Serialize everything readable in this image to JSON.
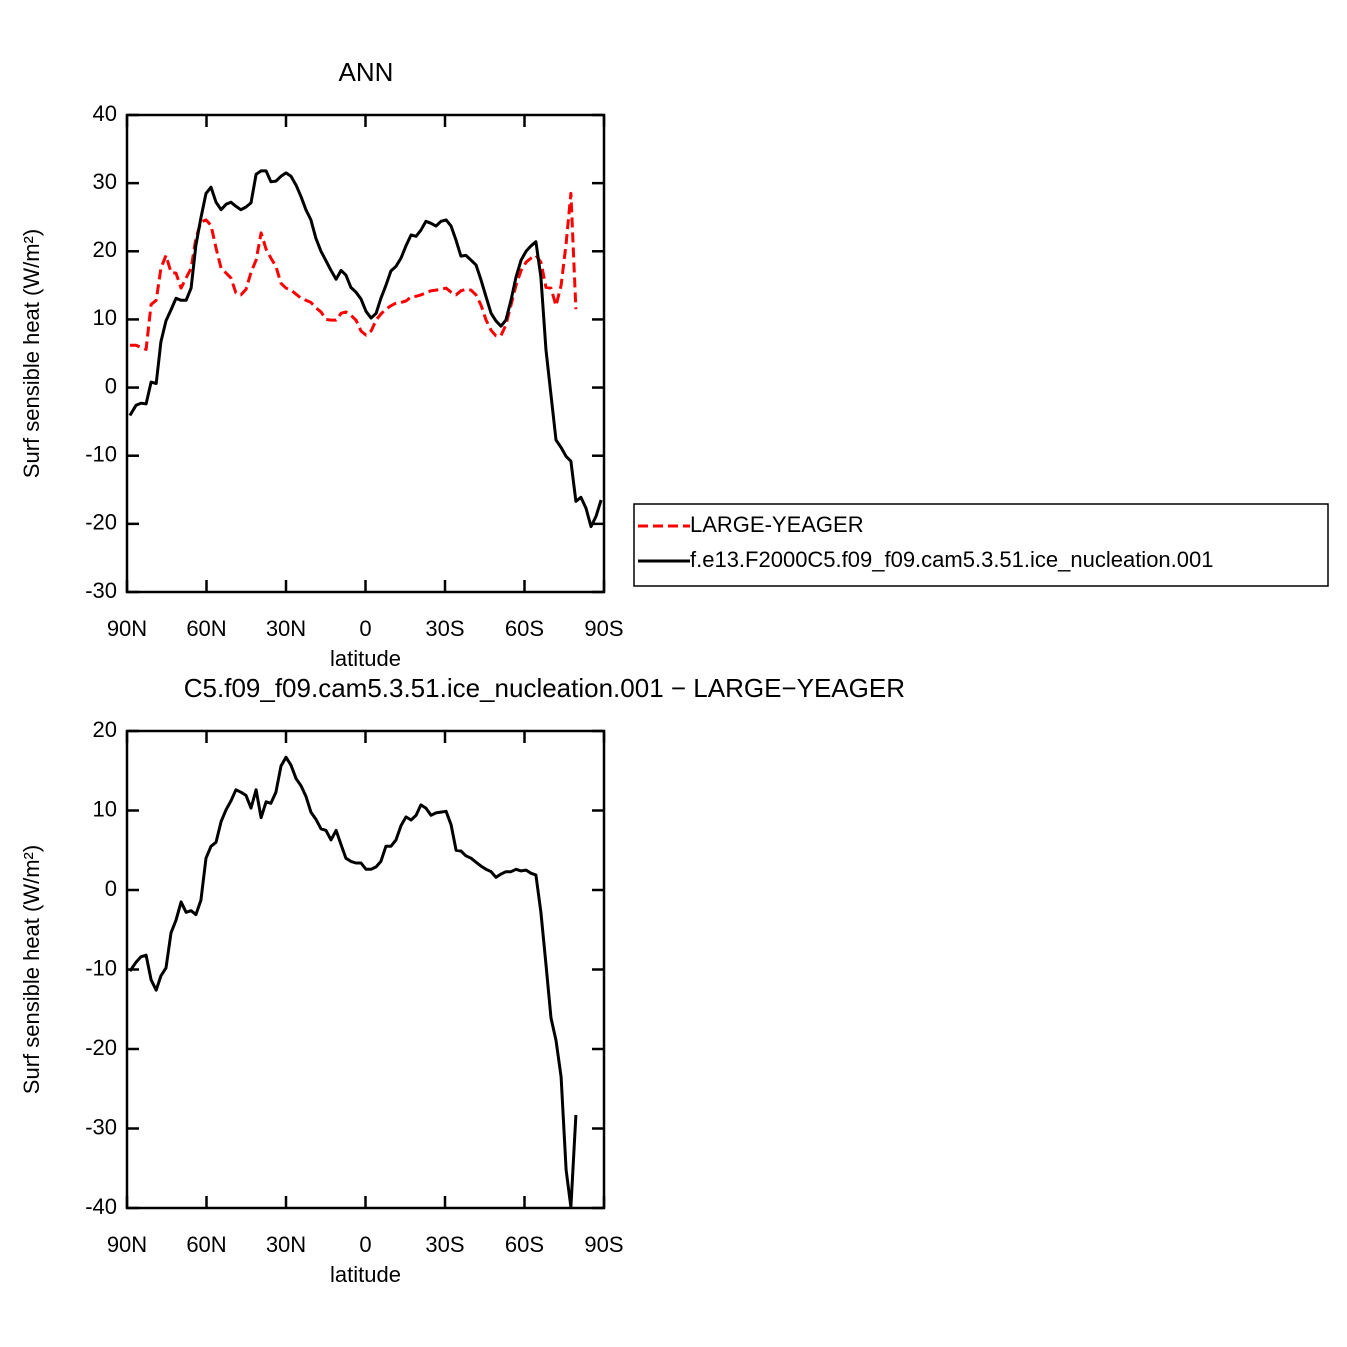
{
  "chart_data": [
    {
      "type": "line",
      "title": "ANN",
      "x_label": "latitude",
      "y_label": "Surf sensible heat (W/m²)",
      "x": [
        88.9,
        86.6,
        84.7,
        82.8,
        80.9,
        79.0,
        77.2,
        75.3,
        73.4,
        71.5,
        69.6,
        67.7,
        65.8,
        64.0,
        62.1,
        60.2,
        58.3,
        56.4,
        54.5,
        52.6,
        50.8,
        48.9,
        47.0,
        45.1,
        43.2,
        41.3,
        39.4,
        37.5,
        35.7,
        33.8,
        31.9,
        30.0,
        28.1,
        26.2,
        24.3,
        22.5,
        20.6,
        18.7,
        16.8,
        14.9,
        13.0,
        11.1,
        9.2,
        7.4,
        5.5,
        3.6,
        1.7,
        -0.2,
        -2.1,
        -4.0,
        -5.8,
        -7.7,
        -9.6,
        -11.5,
        -13.4,
        -15.3,
        -17.2,
        -19.1,
        -20.9,
        -22.8,
        -24.7,
        -26.6,
        -28.5,
        -30.4,
        -32.3,
        -34.2,
        -36.0,
        -37.9,
        -39.8,
        -41.7,
        -43.6,
        -45.5,
        -47.4,
        -49.2,
        -51.1,
        -53.0,
        -54.9,
        -56.8,
        -58.7,
        -60.6,
        -62.5,
        -64.3,
        -66.2,
        -68.1,
        -70.0,
        -71.9,
        -73.8,
        -75.7,
        -77.5,
        -79.4,
        -81.3,
        -83.2,
        -85.1,
        -87.0,
        -88.9
      ],
      "xlim": [
        90,
        -90
      ],
      "xticks": [
        {
          "value": 90,
          "label": "90N"
        },
        {
          "value": 60,
          "label": "60N"
        },
        {
          "value": 30,
          "label": "30N"
        },
        0,
        {
          "value": -30,
          "label": "30S"
        },
        {
          "value": -60,
          "label": "60S"
        },
        {
          "value": -90,
          "label": "90S"
        }
      ],
      "ylim": [
        -30,
        40
      ],
      "yticks": [
        -30,
        -20,
        -10,
        0,
        10,
        20,
        30,
        40
      ],
      "legend": "right",
      "series": [
        {
          "name": "LARGE-YEAGER",
          "color": "#ff0000",
          "dash": "dashed",
          "values": [
            6.2,
            6.2,
            5.9,
            5.6,
            12.2,
            12.8,
            17.5,
            19.4,
            16.9,
            16.8,
            14.6,
            16.1,
            17.5,
            21.9,
            24.3,
            24.6,
            23.8,
            20.5,
            17.5,
            16.8,
            16.1,
            13.9,
            13.6,
            14.4,
            16.9,
            18.7,
            22.7,
            20.3,
            19.0,
            17.8,
            15.3,
            14.6,
            14.3,
            13.7,
            13.1,
            12.8,
            12.5,
            11.7,
            11.1,
            10.0,
            9.9,
            9.9,
            10.9,
            11.1,
            10.6,
            9.9,
            8.3,
            7.7,
            8.3,
            9.9,
            10.8,
            11.5,
            12.0,
            12.4,
            12.5,
            12.7,
            13.3,
            13.4,
            13.6,
            13.9,
            14.2,
            14.3,
            14.4,
            14.6,
            14.0,
            13.6,
            14.2,
            14.4,
            14.3,
            13.6,
            12.1,
            9.9,
            8.4,
            7.6,
            7.6,
            9.2,
            12.1,
            15.0,
            17.2,
            18.4,
            19.0,
            19.4,
            18.4,
            14.7,
            14.6,
            12.0,
            15.0,
            21.1,
            28.5,
            11.5,
            null,
            null,
            null,
            null,
            null
          ]
        },
        {
          "name": "f.e13.F2000C5.f09_f09.cam5.3.51.ice_nucleation.001",
          "color": "#000000",
          "dash": "solid",
          "values": [
            -4.1,
            -2.6,
            -2.3,
            -2.4,
            0.8,
            0.6,
            6.7,
            9.8,
            11.4,
            13.1,
            12.8,
            12.8,
            14.6,
            20.9,
            24.9,
            28.5,
            29.4,
            27.2,
            26.1,
            26.9,
            27.2,
            26.6,
            26.1,
            26.5,
            27.1,
            31.3,
            31.8,
            31.8,
            30.2,
            30.3,
            31.0,
            31.5,
            31.0,
            29.7,
            28.0,
            26.1,
            24.6,
            21.9,
            20.0,
            18.6,
            17.2,
            15.9,
            17.2,
            16.5,
            14.7,
            14.0,
            13.0,
            11.2,
            10.2,
            10.9,
            13.1,
            15.0,
            17.1,
            17.8,
            19.0,
            20.8,
            22.4,
            22.2,
            23.1,
            24.4,
            24.1,
            23.7,
            24.4,
            24.6,
            23.7,
            21.6,
            19.3,
            19.4,
            18.7,
            18.0,
            15.8,
            13.3,
            10.9,
            9.8,
            9.0,
            9.9,
            12.8,
            16.2,
            18.7,
            20.0,
            20.8,
            21.4,
            16.2,
            5.5,
            -1.1,
            -7.7,
            -8.8,
            -10.1,
            -10.8,
            -16.7,
            -16.1,
            -17.7,
            -20.4,
            -18.9,
            -16.5
          ]
        }
      ]
    },
    {
      "type": "line",
      "title": "C5.f09_f09.cam5.3.51.ice_nucleation.001 − LARGE−YEAGER",
      "x_label": "latitude",
      "y_label": "Surf sensible heat (W/m²)",
      "x": [
        88.9,
        86.6,
        84.7,
        82.8,
        80.9,
        79.0,
        77.2,
        75.3,
        73.4,
        71.5,
        69.6,
        67.7,
        65.8,
        64.0,
        62.1,
        60.2,
        58.3,
        56.4,
        54.5,
        52.6,
        50.8,
        48.9,
        47.0,
        45.1,
        43.2,
        41.3,
        39.4,
        37.5,
        35.7,
        33.8,
        31.9,
        30.0,
        28.1,
        26.2,
        24.3,
        22.5,
        20.6,
        18.7,
        16.8,
        14.9,
        13.0,
        11.1,
        9.2,
        7.4,
        5.5,
        3.6,
        1.7,
        -0.2,
        -2.1,
        -4.0,
        -5.8,
        -7.7,
        -9.6,
        -11.5,
        -13.4,
        -15.3,
        -17.2,
        -19.1,
        -20.9,
        -22.8,
        -24.7,
        -26.6,
        -28.5,
        -30.4,
        -32.3,
        -34.2,
        -36.0,
        -37.9,
        -39.8,
        -41.7,
        -43.6,
        -45.5,
        -47.4,
        -49.2,
        -51.1,
        -53.0,
        -54.9,
        -56.8,
        -58.7,
        -60.6,
        -62.5,
        -64.3,
        -66.2,
        -68.1,
        -70.0,
        -71.9,
        -73.8,
        -75.7,
        -77.5,
        -79.4,
        -81.3,
        -83.2,
        -85.1,
        -87.0,
        -88.9
      ],
      "xlim": [
        90,
        -90
      ],
      "xticks": [
        {
          "value": 90,
          "label": "90N"
        },
        {
          "value": 60,
          "label": "60N"
        },
        {
          "value": 30,
          "label": "30N"
        },
        0,
        {
          "value": -30,
          "label": "30S"
        },
        {
          "value": -60,
          "label": "60S"
        },
        {
          "value": -90,
          "label": "90S"
        }
      ],
      "ylim": [
        -40,
        20
      ],
      "yticks": [
        -40,
        -30,
        -20,
        -10,
        0,
        10,
        20
      ],
      "series": [
        {
          "color": "#000000",
          "dash": "solid",
          "values": [
            -10.2,
            -9.1,
            -8.4,
            -8.2,
            -11.3,
            -12.6,
            -10.8,
            -9.8,
            -5.4,
            -3.8,
            -1.5,
            -2.8,
            -2.6,
            -3.1,
            -1.3,
            4.0,
            5.5,
            6.0,
            8.6,
            10.1,
            11.2,
            12.6,
            12.3,
            11.9,
            10.3,
            12.6,
            9.1,
            11.1,
            10.9,
            12.3,
            15.6,
            16.7,
            15.7,
            14.0,
            13.1,
            11.8,
            9.8,
            8.9,
            7.7,
            7.5,
            6.3,
            7.5,
            5.7,
            4.0,
            3.6,
            3.4,
            3.4,
            2.6,
            2.6,
            2.9,
            3.6,
            5.5,
            5.5,
            6.3,
            8.1,
            9.2,
            8.8,
            9.4,
            10.7,
            10.3,
            9.4,
            9.7,
            9.8,
            9.9,
            8.2,
            5.0,
            4.9,
            4.3,
            4.0,
            3.5,
            3.0,
            2.6,
            2.3,
            1.6,
            2.0,
            2.3,
            2.3,
            2.6,
            2.4,
            2.5,
            2.1,
            1.9,
            -2.8,
            -9.4,
            -16.1,
            -18.9,
            -23.5,
            -35.2,
            -39.9,
            -28.3,
            null,
            null,
            null,
            null,
            null
          ]
        }
      ]
    }
  ]
}
